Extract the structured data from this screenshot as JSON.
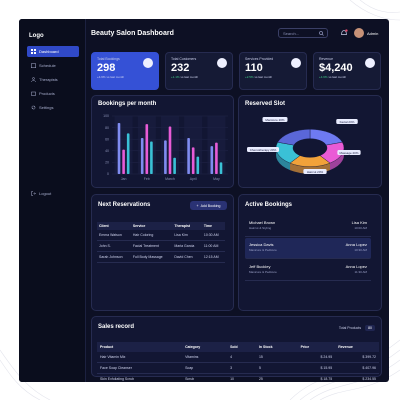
{
  "sidebar": {
    "logo": "Logo",
    "items": [
      {
        "label": "Dashboard",
        "icon": "grid-icon"
      },
      {
        "label": "Schedule",
        "icon": "calendar-icon"
      },
      {
        "label": "Therapists",
        "icon": "users-icon"
      },
      {
        "label": "Products",
        "icon": "box-icon"
      },
      {
        "label": "Settings",
        "icon": "gear-icon"
      }
    ],
    "logout": "Logout"
  },
  "header": {
    "title": "Beauty Salon Dashboard",
    "search_placeholder": "Search...",
    "user": "Admin"
  },
  "stats": [
    {
      "label": "Total Bookings",
      "value": "298",
      "change": "+4.6%",
      "note": "vs last month"
    },
    {
      "label": "Total Customers",
      "value": "232",
      "change": "+1.1%",
      "note": "vs last month"
    },
    {
      "label": "Services Provided",
      "value": "110",
      "change": "+2.5%",
      "note": "vs last month"
    },
    {
      "label": "Revenue",
      "value": "$4,240",
      "change": "+4.6%",
      "note": "vs last month"
    }
  ],
  "chart_data": [
    {
      "type": "bar",
      "title": "Bookings per month",
      "categories": [
        "Jan",
        "Feb",
        "March",
        "April",
        "May"
      ],
      "ylim": [
        0,
        100
      ],
      "yticks": [
        "100",
        "80",
        "60",
        "40",
        "20",
        "0"
      ],
      "series": [
        {
          "values": [
            88,
            62,
            58,
            62,
            48
          ],
          "color": "#7f8cf0"
        },
        {
          "values": [
            42,
            86,
            82,
            46,
            54
          ],
          "color": "#e85bd6"
        },
        {
          "values": [
            70,
            56,
            28,
            30,
            20
          ],
          "color": "#3ac1d6"
        }
      ]
    },
    {
      "type": "pie",
      "title": "Reserved Slot",
      "labels": [
        "Manicure 20%",
        "Facial 20%",
        "Massage 20%",
        "Haircut 20%",
        "Chemotherapy 20%"
      ],
      "values": [
        20,
        20,
        20,
        20,
        20
      ],
      "colors": [
        "#6e7af2",
        "#ea5bd6",
        "#f2a23a",
        "#3ac1d6",
        "#5a67d8"
      ]
    }
  ],
  "reservations": {
    "title": "Next Reservations",
    "add_label": "Add Booking",
    "columns": [
      "Client",
      "Service",
      "Therapist",
      "Time"
    ],
    "rows": [
      {
        "client": "Emma Watson",
        "service": "Hair Coloring",
        "therapist": "Lisa Kim",
        "time": "10:30 AM"
      },
      {
        "client": "John S.",
        "service": "Facial Treatment",
        "therapist": "Maria Garcia",
        "time": "11:00 AM"
      },
      {
        "client": "Sarah Johnson",
        "service": "Full Body Massage",
        "therapist": "David Chen",
        "time": "12:15 AM"
      }
    ]
  },
  "bookings": {
    "title": "Active Bookings",
    "items": [
      {
        "name": "Michael Brown",
        "service": "Haircut & Styling",
        "staff": "Lisa Kim",
        "time": "10:00 AM"
      },
      {
        "name": "Jessica Davis",
        "service": "Manicure & Pedicure",
        "staff": "Anna Lopez",
        "time": "10:30 AM"
      },
      {
        "name": "Jeff Buckley",
        "service": "Manicure & Pedicure",
        "staff": "Anna Lopez",
        "time": "11:30 AM"
      }
    ]
  },
  "sales": {
    "title": "Sales record",
    "total_label": "Total Products",
    "total_value": "80",
    "columns": [
      "Product",
      "Category",
      "Sold",
      "In Stock",
      "Price",
      "Revenue"
    ],
    "rows": [
      {
        "product": "Hair Vitamin Mix",
        "category": "Vitamins",
        "sold": "4",
        "stock": "15",
        "price": "$ 24.95",
        "revenue": "$ 399.72"
      },
      {
        "product": "Face Soap Cleanser",
        "category": "Soap",
        "sold": "3",
        "stock": "5",
        "price": "$ 15.95",
        "revenue": "$ 407.96"
      },
      {
        "product": "Skin Exfoliating Scrub",
        "category": "Scrub",
        "sold": "10",
        "stock": "25",
        "price": "$ 18.75",
        "revenue": "$ 234.55"
      }
    ]
  }
}
